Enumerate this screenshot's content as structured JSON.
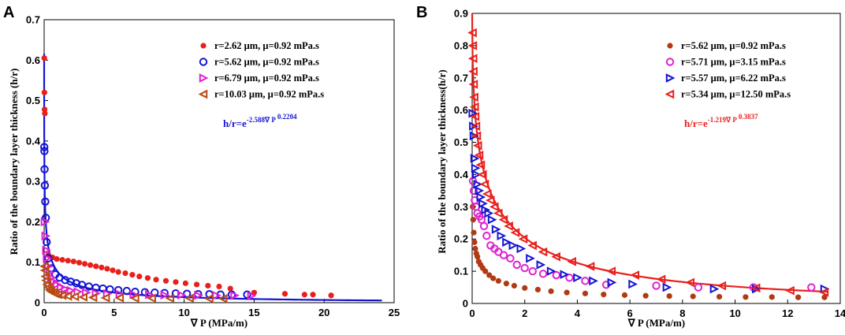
{
  "chart_data": [
    {
      "panel": "A",
      "type": "scatter",
      "xlabel": "∇ P (MPa/m)",
      "ylabel": "Ratio of the boundary layer thickness (h/r)",
      "xlim": [
        0,
        25
      ],
      "ylim": [
        0,
        0.7
      ],
      "xticks": [
        "0",
        "5",
        "10",
        "15",
        "20",
        "25"
      ],
      "yticks": [
        "0",
        "0.1",
        "0.2",
        "0.3",
        "0.4",
        "0.5",
        "0.6",
        "0.7"
      ],
      "legend_position": "top-right",
      "fit": {
        "label_prefix": "h/r=e",
        "exponent": "-2.588∇ P",
        "exponent_power": "0.2204",
        "color": "#1414d4",
        "a": 2.588,
        "b": 0.2204
      },
      "series": [
        {
          "name": "r=2.62 μm, μ=0.92 mPa.s",
          "marker": "filled-circle",
          "color": "#e8201c",
          "x": [
            0.01,
            0.02,
            0.03,
            0.05,
            0.3,
            0.6,
            0.9,
            1.3,
            1.7,
            2.1,
            2.5,
            2.9,
            3.3,
            3.7,
            4.1,
            4.5,
            4.9,
            5.3,
            5.8,
            6.3,
            6.8,
            7.4,
            8.0,
            8.7,
            9.4,
            10.1,
            10.9,
            11.7,
            12.5,
            13.3,
            15.0,
            17.2,
            18.6,
            19.2,
            20.5
          ],
          "y": [
            0.605,
            0.52,
            0.478,
            0.468,
            0.118,
            0.112,
            0.108,
            0.106,
            0.104,
            0.102,
            0.099,
            0.096,
            0.093,
            0.09,
            0.087,
            0.084,
            0.08,
            0.076,
            0.073,
            0.069,
            0.065,
            0.061,
            0.057,
            0.054,
            0.051,
            0.048,
            0.045,
            0.042,
            0.04,
            0.035,
            0.025,
            0.022,
            0.02,
            0.02,
            0.018
          ]
        },
        {
          "name": "r=5.62 μm, μ=0.92 mPa.s",
          "marker": "open-circle",
          "color": "#1414d4",
          "x": [
            0.01,
            0.02,
            0.03,
            0.05,
            0.08,
            0.12,
            0.18,
            0.3,
            0.5,
            0.8,
            1.1,
            1.5,
            1.9,
            2.3,
            2.7,
            3.2,
            3.7,
            4.2,
            4.7,
            5.3,
            5.9,
            6.5,
            7.2,
            7.9,
            8.6,
            9.4,
            10.2,
            11.0,
            11.8,
            12.6,
            13.4,
            14.5
          ],
          "y": [
            0.385,
            0.375,
            0.33,
            0.29,
            0.25,
            0.21,
            0.15,
            0.11,
            0.085,
            0.07,
            0.062,
            0.056,
            0.052,
            0.048,
            0.044,
            0.04,
            0.037,
            0.035,
            0.033,
            0.031,
            0.029,
            0.027,
            0.026,
            0.025,
            0.024,
            0.023,
            0.022,
            0.021,
            0.021,
            0.02,
            0.02,
            0.02
          ]
        },
        {
          "name": "r=6.79 μm, μ=0.92 mPa.s",
          "marker": "open-triangle-right",
          "color": "#e020d0",
          "x": [
            0.05,
            0.1,
            0.15,
            0.2,
            0.3,
            0.4,
            0.5,
            0.7,
            0.9,
            1.2,
            1.5,
            1.9,
            2.4,
            3.0,
            3.7,
            4.5,
            5.4,
            6.4,
            7.5,
            8.6,
            9.8,
            11.0,
            12.3,
            13.6,
            14.8
          ],
          "y": [
            0.2,
            0.165,
            0.13,
            0.11,
            0.09,
            0.075,
            0.062,
            0.052,
            0.045,
            0.038,
            0.034,
            0.03,
            0.027,
            0.025,
            0.023,
            0.022,
            0.021,
            0.02,
            0.02,
            0.019,
            0.019,
            0.018,
            0.018,
            0.018,
            0.017
          ]
        },
        {
          "name": "r=10.03 μm, μ=0.92 mPa.s",
          "marker": "open-triangle-left",
          "color": "#b84a12",
          "x": [
            0.03,
            0.06,
            0.1,
            0.15,
            0.22,
            0.3,
            0.4,
            0.5,
            0.65,
            0.8,
            1.0,
            1.3,
            1.7,
            2.2,
            2.8,
            3.5,
            4.4,
            5.4,
            6.5,
            7.7,
            9.0,
            10.4,
            11.8,
            12.8
          ],
          "y": [
            0.09,
            0.08,
            0.065,
            0.055,
            0.045,
            0.038,
            0.032,
            0.028,
            0.025,
            0.022,
            0.02,
            0.018,
            0.016,
            0.015,
            0.014,
            0.013,
            0.012,
            0.012,
            0.011,
            0.011,
            0.011,
            0.011,
            0.01,
            0.01
          ]
        }
      ]
    },
    {
      "panel": "B",
      "type": "scatter",
      "xlabel": "∇ P (MPa/m)",
      "ylabel": "Ratio of the boundary layer thickness(h/r)",
      "xlim": [
        0,
        14
      ],
      "ylim": [
        0,
        0.9
      ],
      "xticks": [
        "0",
        "2",
        "4",
        "6",
        "8",
        "10",
        "12",
        "14"
      ],
      "yticks": [
        "0",
        "0.1",
        "0.2",
        "0.3",
        "0.4",
        "0.5",
        "0.6",
        "0.7",
        "0.8",
        "0.9"
      ],
      "legend_position": "top-right",
      "fit": {
        "label_prefix": "h/r=e",
        "exponent": "-1.219∇ P",
        "exponent_power": "0.3837",
        "color": "#e8201c",
        "a": 1.219,
        "b": 0.3837
      },
      "series": [
        {
          "name": "r=5.62 μm, μ=0.92 mPa.s",
          "marker": "filled-circle",
          "color": "#b03a14",
          "x": [
            0.02,
            0.04,
            0.06,
            0.09,
            0.12,
            0.16,
            0.2,
            0.25,
            0.32,
            0.4,
            0.5,
            0.65,
            0.8,
            1.0,
            1.3,
            1.6,
            2.0,
            2.5,
            3.0,
            3.6,
            4.3,
            5.0,
            5.8,
            6.6,
            7.5,
            8.4,
            9.4,
            10.4,
            11.4,
            12.4,
            13.4
          ],
          "y": [
            0.3,
            0.26,
            0.22,
            0.19,
            0.17,
            0.155,
            0.145,
            0.13,
            0.12,
            0.11,
            0.1,
            0.088,
            0.078,
            0.07,
            0.062,
            0.055,
            0.048,
            0.043,
            0.038,
            0.034,
            0.031,
            0.028,
            0.026,
            0.024,
            0.023,
            0.022,
            0.021,
            0.02,
            0.02,
            0.019,
            0.019
          ]
        },
        {
          "name": "r=5.71 μm, μ=3.15 mPa.s",
          "marker": "open-circle",
          "color": "#e020d0",
          "x": [
            0.03,
            0.06,
            0.1,
            0.15,
            0.2,
            0.28,
            0.36,
            0.45,
            0.55,
            0.7,
            0.85,
            1.0,
            1.2,
            1.45,
            1.7,
            2.0,
            2.3,
            2.7,
            3.2,
            3.7,
            4.3,
            5.1,
            7.0,
            8.6,
            10.7,
            12.9
          ],
          "y": [
            0.38,
            0.35,
            0.32,
            0.3,
            0.28,
            0.27,
            0.26,
            0.24,
            0.21,
            0.18,
            0.17,
            0.16,
            0.15,
            0.14,
            0.12,
            0.11,
            0.1,
            0.092,
            0.088,
            0.08,
            0.07,
            0.058,
            0.055,
            0.05,
            0.05,
            0.05
          ]
        },
        {
          "name": "r=5.57 μm, μ=6.22 mPa.s",
          "marker": "open-triangle-right",
          "color": "#1414d4",
          "x": [
            0.02,
            0.04,
            0.06,
            0.09,
            0.12,
            0.16,
            0.2,
            0.26,
            0.32,
            0.4,
            0.5,
            0.62,
            0.75,
            0.9,
            1.1,
            1.3,
            1.55,
            1.85,
            2.2,
            2.6,
            3.0,
            3.5,
            4.0,
            4.6,
            5.3,
            6.1,
            7.4,
            9.2,
            10.8,
            13.4
          ],
          "y": [
            0.59,
            0.55,
            0.52,
            0.45,
            0.42,
            0.4,
            0.37,
            0.35,
            0.33,
            0.31,
            0.29,
            0.28,
            0.26,
            0.23,
            0.21,
            0.19,
            0.18,
            0.17,
            0.14,
            0.12,
            0.1,
            0.09,
            0.08,
            0.07,
            0.065,
            0.06,
            0.05,
            0.045,
            0.045,
            0.045
          ]
        },
        {
          "name": "r=5.34 μm, μ=12.50 mPa.s",
          "marker": "open-triangle-left",
          "color": "#e8201c",
          "x": [
            0.02,
            0.03,
            0.04,
            0.05,
            0.06,
            0.08,
            0.1,
            0.12,
            0.15,
            0.18,
            0.22,
            0.27,
            0.33,
            0.4,
            0.48,
            0.58,
            0.7,
            0.85,
            1.0,
            1.2,
            1.4,
            1.65,
            1.95,
            2.3,
            2.7,
            3.2,
            3.8,
            4.5,
            5.3,
            6.2,
            7.2,
            8.3,
            9.5,
            10.8,
            12.1,
            13.4
          ],
          "y": [
            0.84,
            0.8,
            0.76,
            0.72,
            0.68,
            0.64,
            0.61,
            0.58,
            0.55,
            0.52,
            0.49,
            0.46,
            0.43,
            0.4,
            0.37,
            0.34,
            0.32,
            0.3,
            0.28,
            0.26,
            0.24,
            0.22,
            0.2,
            0.18,
            0.16,
            0.145,
            0.13,
            0.115,
            0.1,
            0.088,
            0.075,
            0.065,
            0.055,
            0.048,
            0.04,
            0.035
          ]
        }
      ]
    }
  ]
}
